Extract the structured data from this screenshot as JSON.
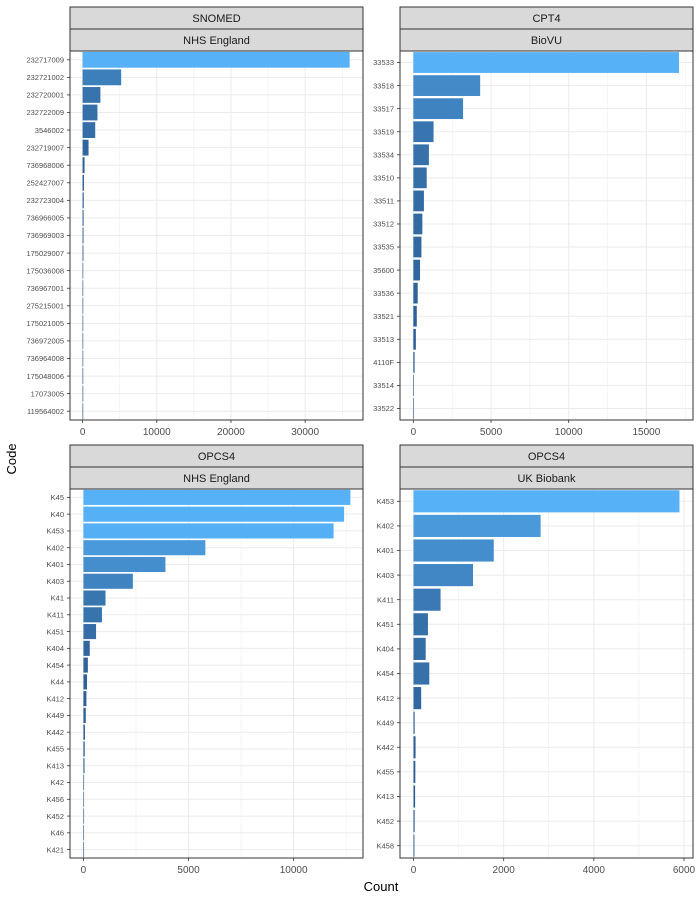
{
  "x_axis_title": "Count",
  "y_axis_title": "Code",
  "chart_data": [
    {
      "type": "bar",
      "orientation": "horizontal",
      "strip_top": "SNOMED",
      "strip_bottom": "NHS England",
      "categories": [
        "232717009",
        "232721002",
        "232720001",
        "232722009",
        "3546002",
        "232719007",
        "736968006",
        "252427007",
        "232723004",
        "736966005",
        "736969003",
        "175029007",
        "175036008",
        "736967001",
        "275215001",
        "175021005",
        "736972005",
        "736964008",
        "175048006",
        "17073005",
        "119564002"
      ],
      "values": [
        36000,
        5200,
        2400,
        2000,
        1700,
        800,
        260,
        180,
        150,
        130,
        120,
        110,
        60,
        50,
        45,
        40,
        35,
        30,
        25,
        20,
        15
      ],
      "xlim": [
        -1700,
        37800
      ],
      "xticks": [
        0,
        10000,
        20000,
        30000
      ],
      "xtick_labels": [
        "0",
        "10000",
        "20000",
        "30000"
      ]
    },
    {
      "type": "bar",
      "orientation": "horizontal",
      "strip_top": "CPT4",
      "strip_bottom": "BioVU",
      "categories": [
        "33533",
        "33518",
        "33517",
        "33519",
        "33534",
        "33510",
        "33511",
        "33512",
        "33535",
        "35600",
        "33536",
        "33521",
        "33513",
        "4110F",
        "33514",
        "33522"
      ],
      "values": [
        17100,
        4300,
        3200,
        1300,
        1000,
        860,
        680,
        580,
        520,
        430,
        280,
        220,
        160,
        80,
        40,
        20
      ],
      "xlim": [
        -860,
        18000
      ],
      "xticks": [
        0,
        5000,
        10000,
        15000
      ],
      "xtick_labels": [
        "0",
        "5000",
        "10000",
        "15000"
      ]
    },
    {
      "type": "bar",
      "orientation": "horizontal",
      "strip_top": "OPCS4",
      "strip_bottom": "NHS England",
      "categories": [
        "K45",
        "K40",
        "K453",
        "K402",
        "K401",
        "K403",
        "K41",
        "K411",
        "K451",
        "K404",
        "K454",
        "K44",
        "K412",
        "K449",
        "K442",
        "K455",
        "K413",
        "K42",
        "K456",
        "K452",
        "K46",
        "K421"
      ],
      "values": [
        12700,
        12400,
        11900,
        5800,
        3900,
        2350,
        1050,
        880,
        600,
        300,
        210,
        170,
        140,
        110,
        70,
        60,
        50,
        30,
        20,
        15,
        10,
        5
      ],
      "xlim": [
        -640,
        13300
      ],
      "xticks": [
        0,
        5000,
        10000
      ],
      "xtick_labels": [
        "0",
        "5000",
        "10000"
      ]
    },
    {
      "type": "bar",
      "orientation": "horizontal",
      "strip_top": "OPCS4",
      "strip_bottom": "UK Biobank",
      "categories": [
        "K453",
        "K402",
        "K401",
        "K403",
        "K411",
        "K451",
        "K404",
        "K454",
        "K412",
        "K449",
        "K442",
        "K455",
        "K413",
        "K452",
        "K458"
      ],
      "values": [
        5900,
        2820,
        1780,
        1320,
        600,
        320,
        270,
        350,
        170,
        25,
        45,
        40,
        35,
        25,
        20
      ],
      "xlim": [
        -300,
        6200
      ],
      "xticks": [
        0,
        2000,
        4000,
        6000
      ],
      "xtick_labels": [
        "0",
        "2000",
        "4000",
        "6000"
      ]
    }
  ]
}
